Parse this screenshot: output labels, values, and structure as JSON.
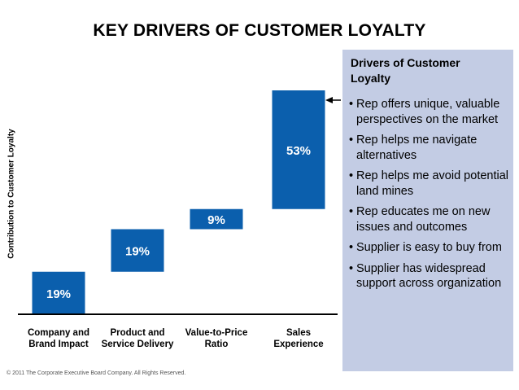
{
  "page": {
    "title": "KEY DRIVERS OF CUSTOMER LOYALTY",
    "footer": "© 2011 The Corporate Executive Board Company. All Rights Reserved."
  },
  "panel": {
    "title": "Drivers of Customer Loyalty",
    "items": [
      "Rep offers unique, valuable perspectives on the market",
      "Rep helps me navigate alternatives",
      "Rep helps me avoid potential land mines",
      "Rep educates me on new issues and outcomes",
      "Supplier is easy to buy from",
      "Supplier has widespread support across organization"
    ],
    "background_color": "#c3cce4"
  },
  "chart_data": {
    "type": "bar",
    "subtype": "waterfall",
    "title": "KEY DRIVERS OF CUSTOMER LOYALTY",
    "xlabel": "",
    "ylabel": "Contribution to Customer Loyalty",
    "categories": [
      [
        "Company and",
        "Brand Impact"
      ],
      [
        "Product and",
        "Service Delivery"
      ],
      [
        "Value-to-Price",
        "Ratio"
      ],
      [
        "Sales",
        "Experience"
      ]
    ],
    "values": [
      19,
      19,
      9,
      53
    ],
    "data_labels": [
      "19%",
      "19%",
      "9%",
      "53%"
    ],
    "unit": "%",
    "ylim": [
      0,
      100
    ],
    "grid": false,
    "bar_color": "#0b5fad",
    "label_color": "#ffffff"
  }
}
